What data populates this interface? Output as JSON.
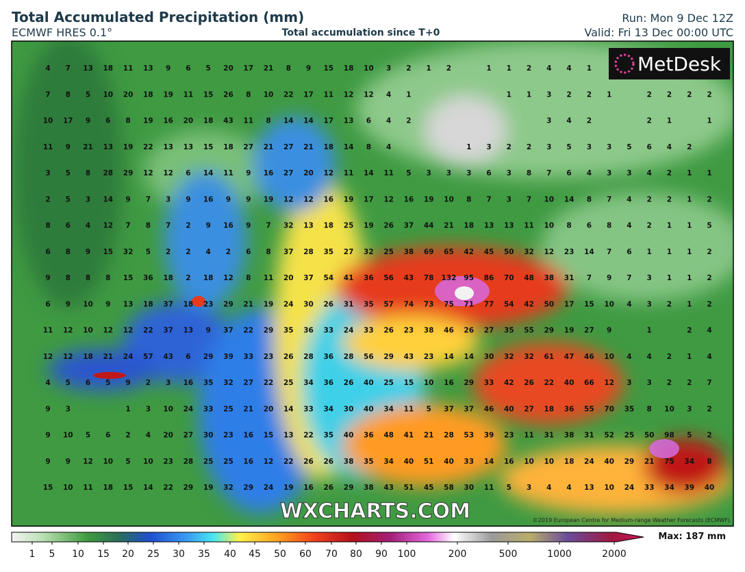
{
  "header": {
    "title": "Total Accumulated Precipitation (mm)",
    "model": "ECMWF HRES 0.1°",
    "subtitle": "Total accumulation since T+0",
    "run": "Run: Mon 9 Dec 12Z",
    "valid": "Valid: Fri 13 Dec 00:00 UTC"
  },
  "logo": "MetDesk",
  "watermark": "WXCHARTS.COM",
  "copyright": "©2019 European Centre for Medium-range Weather Forecasts (ECMWF)",
  "colorbar": {
    "labels": [
      1,
      5,
      10,
      15,
      20,
      25,
      30,
      35,
      40,
      45,
      50,
      60,
      70,
      80,
      90,
      100,
      200,
      500,
      1000,
      2000
    ],
    "max": "Max: 187 mm"
  },
  "grid": {
    "rows": [
      [
        4,
        7,
        13,
        18,
        11,
        13,
        9,
        6,
        5,
        20,
        17,
        21,
        8,
        9,
        15,
        18,
        10,
        3,
        2,
        1,
        2,
        null,
        1,
        1,
        2,
        4,
        4,
        1,
        null,
        null,
        null,
        null,
        null,
        null
      ],
      [
        7,
        8,
        5,
        10,
        20,
        18,
        19,
        11,
        15,
        26,
        8,
        10,
        22,
        17,
        11,
        12,
        12,
        4,
        1,
        null,
        null,
        null,
        null,
        1,
        1,
        3,
        2,
        2,
        1,
        null,
        2,
        2,
        2,
        2
      ],
      [
        10,
        17,
        9,
        6,
        8,
        19,
        16,
        20,
        18,
        43,
        11,
        8,
        14,
        14,
        17,
        13,
        6,
        4,
        2,
        null,
        null,
        null,
        null,
        null,
        null,
        3,
        4,
        2,
        null,
        null,
        2,
        1,
        null,
        1
      ],
      [
        11,
        9,
        21,
        13,
        19,
        22,
        13,
        13,
        15,
        18,
        27,
        21,
        27,
        21,
        18,
        14,
        8,
        4,
        null,
        null,
        null,
        1,
        3,
        2,
        2,
        3,
        5,
        3,
        3,
        5,
        6,
        4,
        2,
        null
      ],
      [
        3,
        5,
        8,
        28,
        29,
        12,
        12,
        6,
        14,
        11,
        9,
        16,
        27,
        20,
        12,
        11,
        14,
        11,
        5,
        3,
        3,
        3,
        6,
        3,
        8,
        7,
        6,
        4,
        3,
        3,
        4,
        2,
        1,
        1
      ],
      [
        2,
        5,
        3,
        14,
        9,
        7,
        3,
        9,
        16,
        9,
        9,
        19,
        12,
        12,
        16,
        19,
        17,
        12,
        16,
        19,
        10,
        8,
        7,
        3,
        7,
        10,
        14,
        8,
        7,
        4,
        2,
        2,
        1,
        2
      ],
      [
        8,
        6,
        4,
        12,
        7,
        8,
        7,
        2,
        9,
        16,
        9,
        7,
        32,
        13,
        18,
        25,
        19,
        26,
        37,
        44,
        21,
        18,
        13,
        13,
        11,
        10,
        8,
        6,
        8,
        4,
        2,
        1,
        1,
        5
      ],
      [
        6,
        8,
        9,
        15,
        32,
        5,
        2,
        2,
        4,
        2,
        6,
        8,
        37,
        28,
        35,
        27,
        32,
        25,
        38,
        69,
        65,
        42,
        45,
        50,
        32,
        12,
        23,
        14,
        7,
        6,
        1,
        1,
        1,
        2
      ],
      [
        9,
        8,
        8,
        8,
        15,
        36,
        18,
        2,
        18,
        12,
        8,
        11,
        20,
        37,
        54,
        41,
        36,
        56,
        43,
        78,
        132,
        95,
        86,
        70,
        48,
        38,
        31,
        7,
        9,
        7,
        3,
        1,
        1,
        2
      ],
      [
        6,
        9,
        10,
        9,
        13,
        18,
        37,
        18,
        23,
        29,
        21,
        19,
        24,
        30,
        26,
        31,
        35,
        57,
        74,
        73,
        75,
        71,
        77,
        54,
        42,
        50,
        17,
        15,
        10,
        4,
        3,
        2,
        1,
        2
      ],
      [
        11,
        12,
        10,
        12,
        12,
        22,
        37,
        13,
        9,
        37,
        22,
        29,
        35,
        36,
        33,
        24,
        33,
        26,
        23,
        38,
        46,
        26,
        27,
        35,
        55,
        29,
        19,
        27,
        9,
        null,
        1,
        null,
        2,
        4
      ],
      [
        12,
        12,
        18,
        21,
        24,
        57,
        43,
        6,
        29,
        39,
        33,
        23,
        26,
        28,
        36,
        28,
        56,
        29,
        43,
        23,
        14,
        14,
        30,
        32,
        32,
        61,
        47,
        46,
        10,
        4,
        4,
        2,
        1,
        4
      ],
      [
        4,
        5,
        6,
        5,
        9,
        2,
        3,
        16,
        35,
        32,
        27,
        22,
        25,
        34,
        36,
        26,
        40,
        25,
        15,
        10,
        16,
        29,
        33,
        42,
        26,
        22,
        40,
        66,
        12,
        3,
        3,
        2,
        2,
        7
      ],
      [
        9,
        3,
        null,
        null,
        1,
        3,
        10,
        24,
        33,
        25,
        21,
        20,
        14,
        33,
        34,
        30,
        40,
        34,
        11,
        5,
        37,
        37,
        46,
        40,
        27,
        18,
        36,
        55,
        70,
        35,
        8,
        10,
        3,
        2
      ],
      [
        9,
        10,
        5,
        6,
        2,
        4,
        20,
        27,
        30,
        23,
        16,
        15,
        13,
        22,
        35,
        40,
        36,
        48,
        41,
        21,
        28,
        53,
        39,
        23,
        11,
        31,
        38,
        31,
        52,
        25,
        50,
        98,
        5,
        2
      ],
      [
        9,
        9,
        12,
        10,
        5,
        10,
        23,
        28,
        25,
        25,
        16,
        12,
        22,
        26,
        26,
        38,
        35,
        34,
        40,
        51,
        40,
        33,
        14,
        16,
        10,
        10,
        18,
        24,
        40,
        29,
        21,
        75,
        34,
        8
      ],
      [
        15,
        10,
        11,
        18,
        15,
        14,
        22,
        29,
        19,
        32,
        29,
        24,
        19,
        16,
        26,
        29,
        38,
        43,
        51,
        45,
        58,
        30,
        11,
        5,
        3,
        4,
        4,
        13,
        10,
        24,
        33,
        34,
        39,
        40
      ]
    ]
  }
}
